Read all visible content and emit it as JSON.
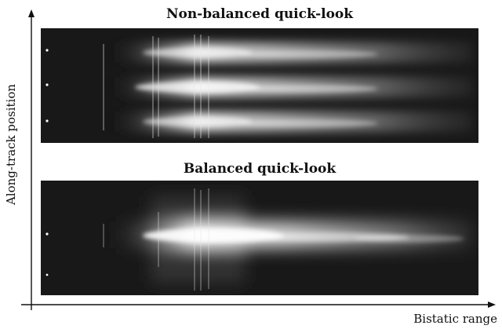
{
  "panels": {
    "top_title": "Non-balanced quick-look",
    "bottom_title": "Balanced quick-look"
  },
  "axes": {
    "x_label": "Bistatic range",
    "y_label": "Along-track position"
  },
  "colors": {
    "background": "#ffffff",
    "image_dark": "#161616",
    "echo_bright": "#f2f2f2",
    "axis": "#111111"
  }
}
